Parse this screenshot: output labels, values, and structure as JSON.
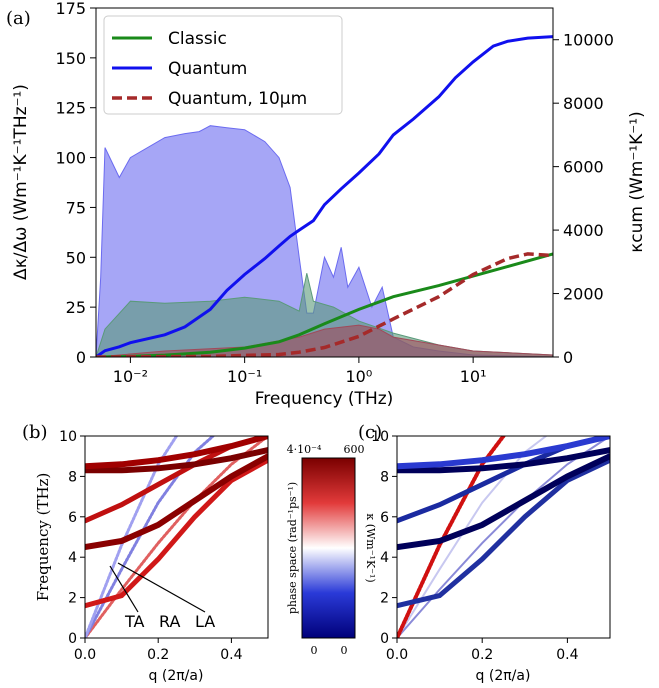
{
  "chart_data": [
    {
      "panel_label": "(a)",
      "type": "area",
      "xlabel": "Frequency (THz)",
      "ylabel": "Δκ/Δω (Wm⁻¹K⁻¹THz⁻¹)",
      "ylabel_right": "κcum (Wm⁻¹K⁻¹)",
      "x_scale": "log",
      "xlim": [
        0.005,
        50
      ],
      "ylim": [
        0,
        175
      ],
      "ylim_right": [
        0,
        11000
      ],
      "x_ticks": [
        0.01,
        0.1,
        1,
        10
      ],
      "x_tick_labels": [
        "10⁻²",
        "10⁻¹",
        "10⁰",
        "10¹"
      ],
      "y_ticks": [
        0,
        25,
        50,
        75,
        100,
        125,
        150,
        175
      ],
      "y_ticks_right": [
        0,
        2000,
        4000,
        6000,
        8000,
        10000
      ],
      "legend_position": "upper-left",
      "legend": [
        {
          "name": "Classic",
          "color": "#1a8a1a",
          "style": "solid"
        },
        {
          "name": "Quantum",
          "color": "#1010ee",
          "style": "solid"
        },
        {
          "name": "Quantum, 10μm",
          "color": "#a52a2a",
          "style": "dashed"
        }
      ],
      "filled_areas": [
        {
          "series": "Quantum",
          "color": "#6b6bf0",
          "x": [
            0.005,
            0.0055,
            0.006,
            0.008,
            0.01,
            0.02,
            0.03,
            0.04,
            0.05,
            0.07,
            0.1,
            0.15,
            0.2,
            0.25,
            0.3,
            0.35,
            0.4,
            0.5,
            0.6,
            0.7,
            0.8,
            1.0,
            1.3,
            1.6,
            2.0,
            3,
            5,
            10,
            50
          ],
          "y": [
            0,
            40,
            105,
            90,
            100,
            110,
            112,
            113,
            116,
            115,
            114,
            108,
            100,
            85,
            50,
            22,
            22,
            50,
            40,
            55,
            35,
            45,
            25,
            35,
            10,
            5,
            3,
            1,
            0
          ]
        },
        {
          "series": "Classic",
          "color": "#5a9a7a",
          "x": [
            0.005,
            0.006,
            0.01,
            0.02,
            0.05,
            0.1,
            0.2,
            0.3,
            0.35,
            0.4,
            0.6,
            1.0,
            2.0,
            5,
            10,
            50
          ],
          "y": [
            0,
            14,
            28,
            27,
            28,
            30,
            28,
            23,
            42,
            28,
            25,
            18,
            12,
            6,
            3,
            1
          ]
        },
        {
          "series": "Quantum, 10μm",
          "color": "#a04a5a",
          "x": [
            0.005,
            0.02,
            0.1,
            0.3,
            0.5,
            1.0,
            1.5,
            2,
            5,
            10,
            50
          ],
          "y": [
            0,
            3,
            5,
            10,
            14,
            16,
            14,
            10,
            6,
            3,
            1
          ]
        }
      ],
      "series": [
        {
          "name": "Classic",
          "axis": "right",
          "x": [
            0.005,
            0.01,
            0.02,
            0.05,
            0.1,
            0.2,
            0.3,
            0.5,
            1,
            2,
            5,
            10,
            20,
            50
          ],
          "y": [
            0,
            20,
            60,
            150,
            280,
            480,
            700,
            1050,
            1500,
            1900,
            2250,
            2550,
            2850,
            3250
          ]
        },
        {
          "name": "Quantum",
          "axis": "right",
          "x": [
            0.005,
            0.006,
            0.008,
            0.01,
            0.02,
            0.03,
            0.05,
            0.07,
            0.1,
            0.15,
            0.2,
            0.25,
            0.3,
            0.4,
            0.5,
            0.7,
            1,
            1.5,
            2,
            3,
            5,
            7,
            10,
            15,
            20,
            30,
            50
          ],
          "y": [
            0,
            200,
            320,
            450,
            700,
            950,
            1500,
            2100,
            2600,
            3100,
            3500,
            3800,
            4000,
            4300,
            4800,
            5300,
            5800,
            6400,
            7000,
            7500,
            8200,
            8800,
            9300,
            9800,
            9950,
            10050,
            10100
          ]
        },
        {
          "name": "Quantum, 10μm",
          "axis": "right",
          "x": [
            0.005,
            0.05,
            0.2,
            0.3,
            0.5,
            1,
            2,
            5,
            10,
            20,
            30,
            50
          ],
          "y": [
            0,
            20,
            80,
            150,
            300,
            650,
            1200,
            1900,
            2600,
            3100,
            3250,
            3200
          ]
        }
      ]
    },
    {
      "panel_label": "(b)",
      "type": "scatter",
      "xlabel": "q (2π/a)",
      "ylabel": "Frequency (THz)",
      "xlim": [
        0,
        0.5
      ],
      "ylim": [
        0,
        10
      ],
      "x_ticks": [
        0.0,
        0.2,
        0.4
      ],
      "x_tick_labels": [
        "0.0",
        "0.2",
        "0.4"
      ],
      "y_ticks": [
        0,
        2,
        4,
        6,
        8,
        10
      ],
      "annotations": [
        "TA",
        "RA",
        "LA"
      ],
      "colorbar": {
        "label": "phase space (rad⁻¹ps⁻¹)",
        "top_label": "4·10⁻⁴",
        "bottom_label": "0"
      },
      "series": [
        {
          "name": "TA",
          "x": [
            0,
            0.1,
            0.2,
            0.3,
            0.4,
            0.5
          ],
          "y": [
            0,
            2.4,
            4.7,
            6.8,
            8.6,
            10.0
          ]
        },
        {
          "name": "RA",
          "x": [
            0,
            0.1,
            0.2,
            0.3,
            0.35
          ],
          "y": [
            0,
            3.4,
            6.7,
            9.2,
            10.0
          ]
        },
        {
          "name": "LA",
          "x": [
            0,
            0.1,
            0.2,
            0.25
          ],
          "y": [
            0,
            4.6,
            8.6,
            10.0
          ]
        },
        {
          "name": "optical",
          "x": [
            0,
            0.1,
            0.2,
            0.3,
            0.4,
            0.5
          ],
          "y": [
            1.6,
            2.1,
            3.9,
            6.0,
            7.8,
            8.8
          ]
        },
        {
          "name": "optical",
          "x": [
            0,
            0.1,
            0.2,
            0.3,
            0.4,
            0.5
          ],
          "y": [
            4.5,
            4.8,
            5.6,
            6.8,
            8.0,
            9.0
          ]
        },
        {
          "name": "optical",
          "x": [
            0,
            0.1,
            0.2,
            0.3,
            0.4,
            0.5
          ],
          "y": [
            5.8,
            6.6,
            7.6,
            8.6,
            9.5,
            10.0
          ]
        },
        {
          "name": "optical",
          "x": [
            0,
            0.1,
            0.2,
            0.3,
            0.4,
            0.5
          ],
          "y": [
            8.3,
            8.3,
            8.4,
            8.6,
            8.9,
            9.3
          ]
        },
        {
          "name": "optical",
          "x": [
            0,
            0.1,
            0.2,
            0.3,
            0.4,
            0.5
          ],
          "y": [
            8.5,
            8.6,
            8.8,
            9.1,
            9.5,
            10.0
          ]
        }
      ]
    },
    {
      "panel_label": "(c)",
      "type": "scatter",
      "xlabel": "q (2π/a)",
      "ylabel": "",
      "xlim": [
        0,
        0.5
      ],
      "ylim": [
        0,
        10
      ],
      "x_ticks": [
        0.0,
        0.2,
        0.4
      ],
      "x_tick_labels": [
        "0.0",
        "0.2",
        "0.4"
      ],
      "y_ticks": [
        0,
        2,
        4,
        6,
        8,
        10
      ],
      "colorbar": {
        "label": "κ (Wm⁻¹K⁻¹)",
        "top_label": "600",
        "bottom_label": "0"
      },
      "series": [
        {
          "name": "TA",
          "x": [
            0,
            0.1,
            0.2,
            0.3,
            0.4,
            0.5
          ],
          "y": [
            0,
            2.4,
            4.7,
            6.8,
            8.6,
            10.0
          ]
        },
        {
          "name": "RA",
          "x": [
            0,
            0.1,
            0.2,
            0.3,
            0.35
          ],
          "y": [
            0,
            3.4,
            6.7,
            9.2,
            10.0
          ]
        },
        {
          "name": "LA",
          "x": [
            0,
            0.1,
            0.2,
            0.25
          ],
          "y": [
            0,
            4.6,
            8.6,
            10.0
          ]
        },
        {
          "name": "optical",
          "x": [
            0,
            0.1,
            0.2,
            0.3,
            0.4,
            0.5
          ],
          "y": [
            1.6,
            2.1,
            3.9,
            6.0,
            7.8,
            8.8
          ]
        },
        {
          "name": "optical",
          "x": [
            0,
            0.1,
            0.2,
            0.3,
            0.4,
            0.5
          ],
          "y": [
            4.5,
            4.8,
            5.6,
            6.8,
            8.0,
            9.0
          ]
        },
        {
          "name": "optical",
          "x": [
            0,
            0.1,
            0.2,
            0.3,
            0.4,
            0.5
          ],
          "y": [
            5.8,
            6.6,
            7.6,
            8.6,
            9.5,
            10.0
          ]
        },
        {
          "name": "optical",
          "x": [
            0,
            0.1,
            0.2,
            0.3,
            0.4,
            0.5
          ],
          "y": [
            8.3,
            8.3,
            8.4,
            8.6,
            8.9,
            9.3
          ]
        },
        {
          "name": "optical",
          "x": [
            0,
            0.1,
            0.2,
            0.3,
            0.4,
            0.5
          ],
          "y": [
            8.5,
            8.6,
            8.8,
            9.1,
            9.5,
            10.0
          ]
        }
      ]
    }
  ]
}
